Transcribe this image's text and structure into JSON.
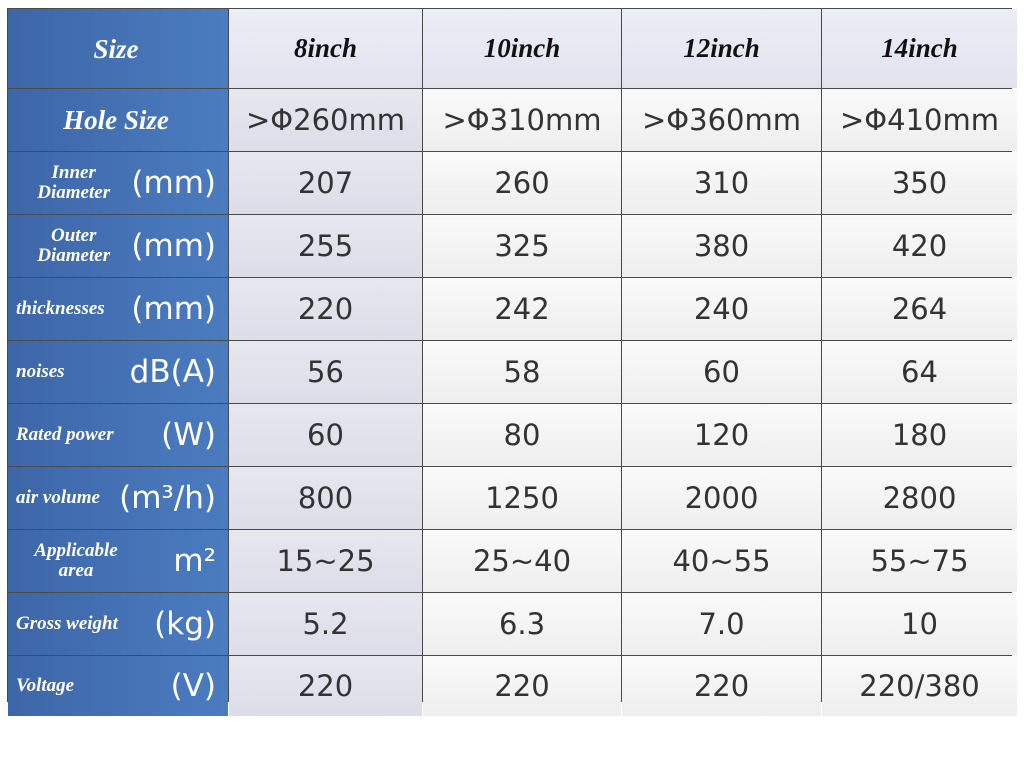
{
  "table": {
    "header": [
      "Size",
      "8inch",
      "10inch",
      "12inch",
      "14inch"
    ],
    "rows": [
      {
        "label": "Hole Size",
        "cells": [
          ">Φ260mm",
          ">Φ310mm",
          ">Φ360mm",
          ">Φ410mm"
        ]
      },
      {
        "label": "Inner Diameter",
        "unit": "(mm)",
        "cells": [
          "207",
          "260",
          "310",
          "350"
        ]
      },
      {
        "label": "Outer Diameter",
        "unit": "(mm)",
        "cells": [
          "255",
          "325",
          "380",
          "420"
        ]
      },
      {
        "label": "thicknesses",
        "unit": "(mm)",
        "cells": [
          "220",
          "242",
          "240",
          "264"
        ]
      },
      {
        "label": "noises",
        "unit": "dB(A)",
        "cells": [
          "56",
          "58",
          "60",
          "64"
        ]
      },
      {
        "label": "Rated power",
        "unit": "(W)",
        "cells": [
          "60",
          "80",
          "120",
          "180"
        ]
      },
      {
        "label": "air volume",
        "unit": "(m³/h)",
        "cells": [
          "800",
          "1250",
          "2000",
          "2800"
        ]
      },
      {
        "label": "Applicable area",
        "unit": "m²",
        "cells": [
          "15~25",
          "25~40",
          "40~55",
          "55~75"
        ]
      },
      {
        "label": "Gross weight",
        "unit": "(kg)",
        "cells": [
          "5.2",
          "6.3",
          "7.0",
          "10"
        ]
      },
      {
        "label": "Voltage",
        "unit": "(V)",
        "cells": [
          "220",
          "220",
          "220",
          "220/380"
        ]
      }
    ]
  }
}
